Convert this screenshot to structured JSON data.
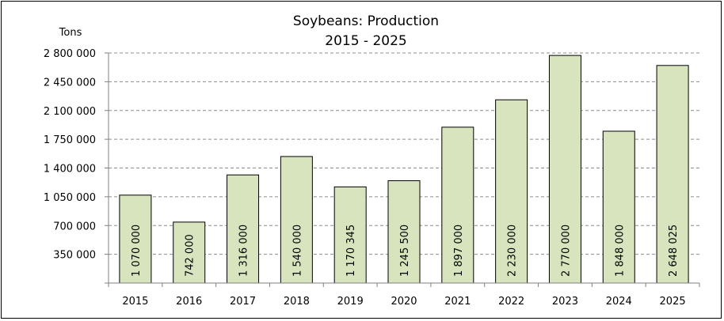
{
  "chart_data": {
    "type": "bar",
    "title": "Soybeans: Production",
    "subtitle": "2015 - 2025",
    "ylabel": "Tons",
    "xlabel": "",
    "categories": [
      "2015",
      "2016",
      "2017",
      "2018",
      "2019",
      "2020",
      "2021",
      "2022",
      "2023",
      "2024",
      "2025"
    ],
    "values": [
      1070000,
      742000,
      1316000,
      1540000,
      1170345,
      1245500,
      1897000,
      2230000,
      2770000,
      1848000,
      2648025
    ],
    "data_labels": [
      "1 070 000",
      "742 000",
      "1 316 000",
      "1 540 000",
      "1 170 345",
      "1 245 500",
      "1 897 000",
      "2 230 000",
      "2 770 000",
      "1 848 000",
      "2 648 025"
    ],
    "ylim": [
      0,
      2800000
    ],
    "yticks": [
      350000,
      700000,
      1050000,
      1400000,
      1750000,
      2100000,
      2450000,
      2800000
    ],
    "ytick_labels": [
      "350 000",
      "700 000",
      "1 050 000",
      "1 400 000",
      "1 750 000",
      "2 100 000",
      "2 450 000",
      "2 800 000"
    ],
    "grid": true,
    "grid_style": "dashed",
    "bar_color": "#d7e4bd",
    "bar_edge_color": "#000000"
  }
}
